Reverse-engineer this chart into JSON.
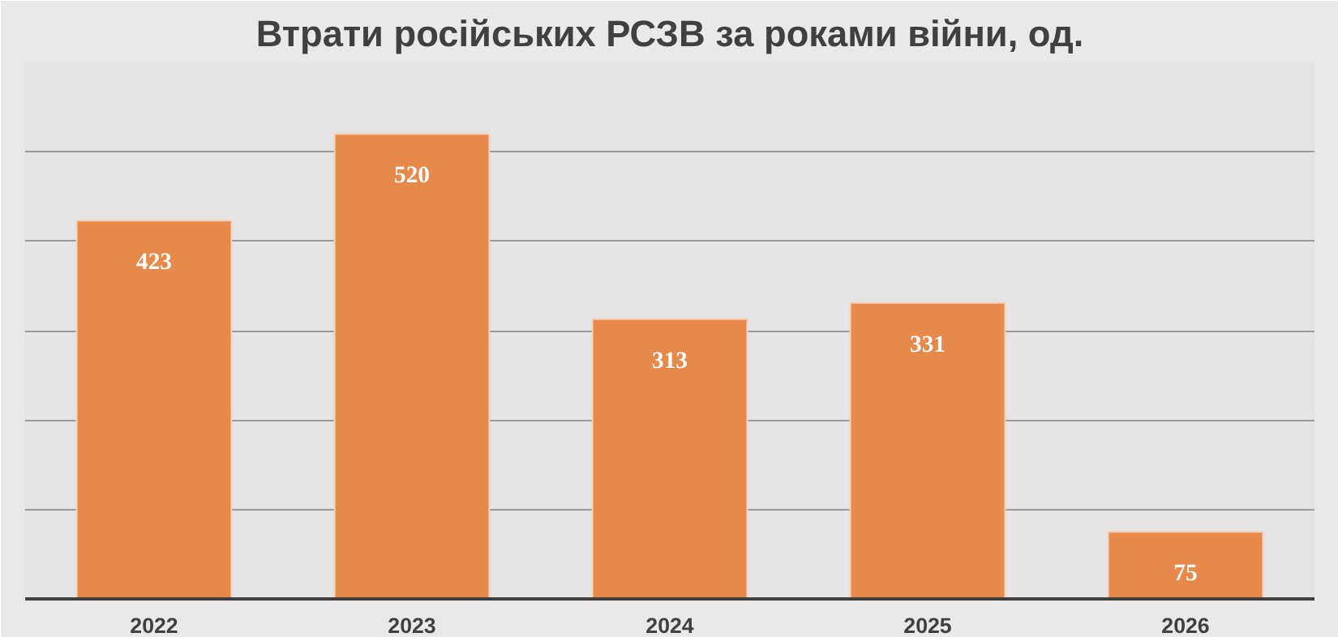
{
  "chart_data": {
    "type": "bar",
    "title": "Втрати російських РСЗВ за роками війни, од.",
    "categories": [
      "2022",
      "2023",
      "2024",
      "2025",
      "2026"
    ],
    "values": [
      423,
      520,
      313,
      331,
      75
    ],
    "color": "#e8894c",
    "ylim": [
      0,
      600
    ],
    "yticks": [
      {
        "value": 0,
        "label": null
      },
      {
        "value": 100,
        "label": null
      },
      {
        "value": 200,
        "label": null
      },
      {
        "value": 300,
        "label": null
      },
      {
        "value": 400,
        "label": null
      },
      {
        "value": 500,
        "label": null
      },
      {
        "value": 600,
        "label": null
      }
    ],
    "tick_labels": "x",
    "grid": "y",
    "data_labels": true
  }
}
